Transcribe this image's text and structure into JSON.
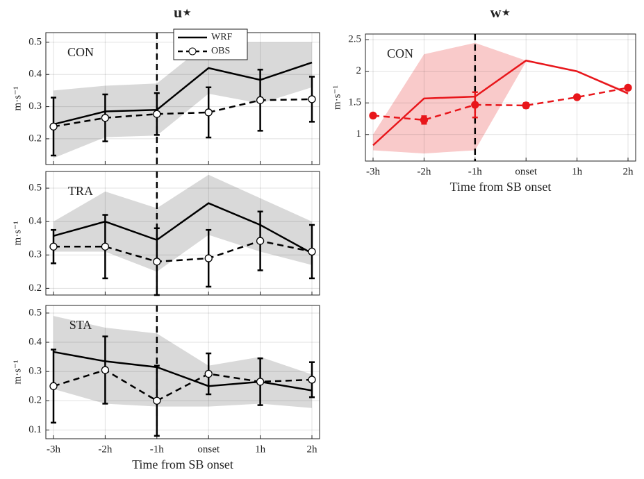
{
  "chart_data": [
    {
      "type": "line",
      "title": "u⋆",
      "annotation": "CON",
      "ylabel": "m·s⁻¹",
      "categories": [
        null,
        null,
        null,
        null,
        null,
        null
      ],
      "ylim": [
        0.12,
        0.53
      ],
      "yticks": [
        0.2,
        0.3,
        0.4,
        0.5
      ],
      "grid": true,
      "legend": "top",
      "vline_at": 2,
      "band_color": "#d9d9d9",
      "band_upper": [
        0.35,
        0.365,
        0.372,
        0.5,
        0.5,
        0.5
      ],
      "band_lower": [
        0.14,
        0.205,
        0.21,
        0.34,
        0.31,
        0.36
      ],
      "series": [
        {
          "name": "WRF",
          "color": "#000000",
          "values": [
            0.245,
            0.285,
            0.29,
            0.42,
            0.383,
            0.437
          ]
        },
        {
          "name": "OBS",
          "color": "#000000",
          "dashed": true,
          "marker": "circle",
          "values": [
            0.238,
            0.265,
            0.277,
            0.282,
            0.32,
            0.323
          ],
          "errors": [
            0.09,
            0.073,
            0.065,
            0.078,
            0.095,
            0.07
          ]
        }
      ]
    },
    {
      "type": "line",
      "annotation": "TRA",
      "ylabel": "m·s⁻¹",
      "categories": [
        null,
        null,
        null,
        null,
        null,
        null
      ],
      "ylim": [
        0.18,
        0.55
      ],
      "yticks": [
        0.2,
        0.3,
        0.4,
        0.5
      ],
      "grid": true,
      "vline_at": 2,
      "band_color": "#d9d9d9",
      "band_upper": [
        0.4,
        0.49,
        0.44,
        0.54,
        0.47,
        0.4
      ],
      "band_lower": [
        0.31,
        0.31,
        0.25,
        0.36,
        0.31,
        0.27
      ],
      "series": [
        {
          "color": "#000000",
          "values": [
            0.357,
            0.4,
            0.345,
            0.455,
            0.39,
            0.305
          ]
        },
        {
          "color": "#000000",
          "dashed": true,
          "marker": "circle",
          "values": [
            0.325,
            0.325,
            0.28,
            0.29,
            0.342,
            0.31
          ],
          "errors": [
            0.05,
            0.095,
            0.1,
            0.085,
            0.088,
            0.08
          ]
        }
      ]
    },
    {
      "type": "line",
      "annotation": "STA",
      "ylabel": "m·s⁻¹",
      "xlabel": "Time from SB onset",
      "categories": [
        "-3h",
        "-2h",
        "-1h",
        "onset",
        "1h",
        "2h"
      ],
      "ylim": [
        0.07,
        0.526
      ],
      "yticks": [
        0.1,
        0.2,
        0.3,
        0.4,
        0.5
      ],
      "grid": true,
      "vline_at": 2,
      "band_color": "#d9d9d9",
      "band_upper": [
        0.49,
        0.45,
        0.43,
        0.32,
        0.35,
        0.29
      ],
      "band_lower": [
        0.24,
        0.19,
        0.18,
        0.18,
        0.19,
        0.175
      ],
      "series": [
        {
          "color": "#000000",
          "values": [
            0.367,
            0.335,
            0.315,
            0.25,
            0.265,
            0.235
          ]
        },
        {
          "color": "#000000",
          "dashed": true,
          "marker": "circle",
          "values": [
            0.25,
            0.305,
            0.2,
            0.292,
            0.265,
            0.272
          ],
          "errors": [
            0.125,
            0.115,
            0.12,
            0.07,
            0.08,
            0.06
          ]
        }
      ]
    },
    {
      "type": "line",
      "title": "w⋆",
      "annotation": "CON",
      "ylabel": "m·s⁻¹",
      "xlabel": "Time from SB onset",
      "categories": [
        "-3h",
        "-2h",
        "-1h",
        "onset",
        "1h",
        "2h"
      ],
      "ylim": [
        0.58,
        2.59
      ],
      "yticks": [
        1,
        1.5,
        2,
        2.5
      ],
      "grid": true,
      "vline_at": 2,
      "band_color": "#f9caca",
      "band_upper": [
        1.0,
        2.27,
        2.45,
        2.17,
        2.01,
        1.68
      ],
      "band_lower": [
        0.75,
        0.7,
        0.75,
        2.15,
        1.99,
        1.63
      ],
      "series": [
        {
          "color": "#e8161b",
          "values": [
            0.83,
            1.57,
            1.6,
            2.17,
            2.0,
            1.65
          ]
        },
        {
          "color": "#e8161b",
          "dashed": true,
          "marker": "circle",
          "marker_fill": true,
          "values": [
            1.3,
            1.23,
            1.47,
            1.46,
            1.59,
            1.74
          ],
          "errors": [
            0.03,
            0.06,
            0.2,
            0.04,
            0.03,
            0.03
          ]
        }
      ]
    }
  ]
}
